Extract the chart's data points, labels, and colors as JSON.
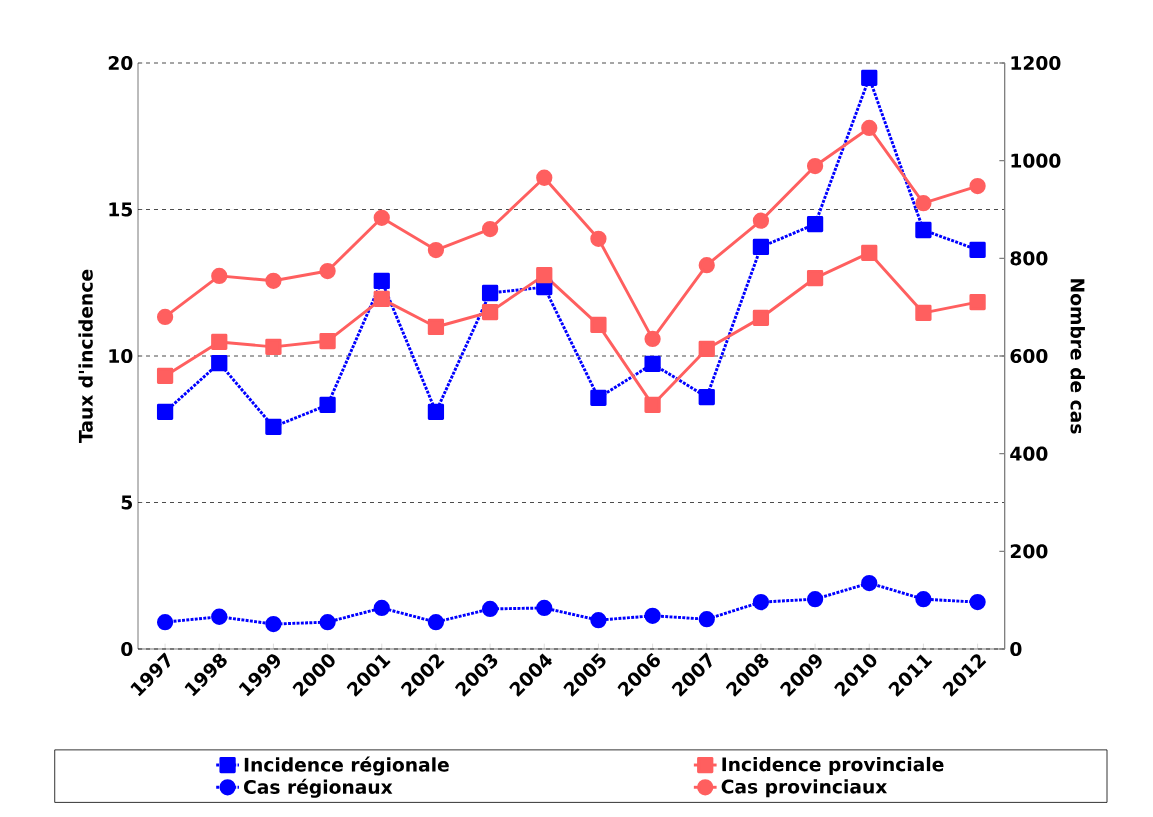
{
  "chart_data": {
    "type": "line",
    "ylabel": "Taux d'incidence",
    "y2label": "Nombre de cas",
    "categories": [
      "1997",
      "1998",
      "1999",
      "2000",
      "2001",
      "2002",
      "2003",
      "2004",
      "2005",
      "2006",
      "2007",
      "2008",
      "2009",
      "2010",
      "2011",
      "2012"
    ],
    "series": [
      {
        "name": "Incidence régionale",
        "color": "#0000ff",
        "marker": "square",
        "line_style": "dotted",
        "values": [
          8.09,
          9.76,
          7.58,
          8.33,
          12.56,
          8.09,
          12.15,
          12.35,
          8.57,
          9.73,
          8.6,
          13.72,
          14.5,
          19.49,
          14.3,
          13.62
        ]
      },
      {
        "name": "Incidence provinciale",
        "color": "#ff5f5f",
        "marker": "square",
        "line_style": "solid",
        "values": [
          9.32,
          10.48,
          10.31,
          10.51,
          11.95,
          10.99,
          11.5,
          12.76,
          11.06,
          8.33,
          10.24,
          11.3,
          12.66,
          13.52,
          11.47,
          11.84
        ]
      },
      {
        "name": "Cas régionaux",
        "color": "#0000ff",
        "marker": "circle",
        "line_style": "dotted",
        "axis": "y2",
        "values": [
          55,
          66,
          51,
          55,
          84,
          55,
          82,
          84,
          59,
          68,
          61,
          96,
          102,
          135,
          102,
          96
        ]
      },
      {
        "name": "Cas provinciaux",
        "color": "#ff5f5f",
        "marker": "circle",
        "line_style": "solid",
        "axis": "y2",
        "values": [
          680,
          764,
          754,
          774,
          883,
          817,
          860,
          965,
          840,
          635,
          786,
          877,
          989,
          1067,
          913,
          948
        ]
      }
    ],
    "ylim": [
      0,
      20
    ],
    "yticks": [
      0,
      5,
      10,
      15,
      20
    ],
    "y2lim": [
      0,
      1200
    ],
    "y2ticks": [
      0,
      200,
      400,
      600,
      800,
      1000,
      1200
    ],
    "grid": "y",
    "legend": "bottom"
  }
}
